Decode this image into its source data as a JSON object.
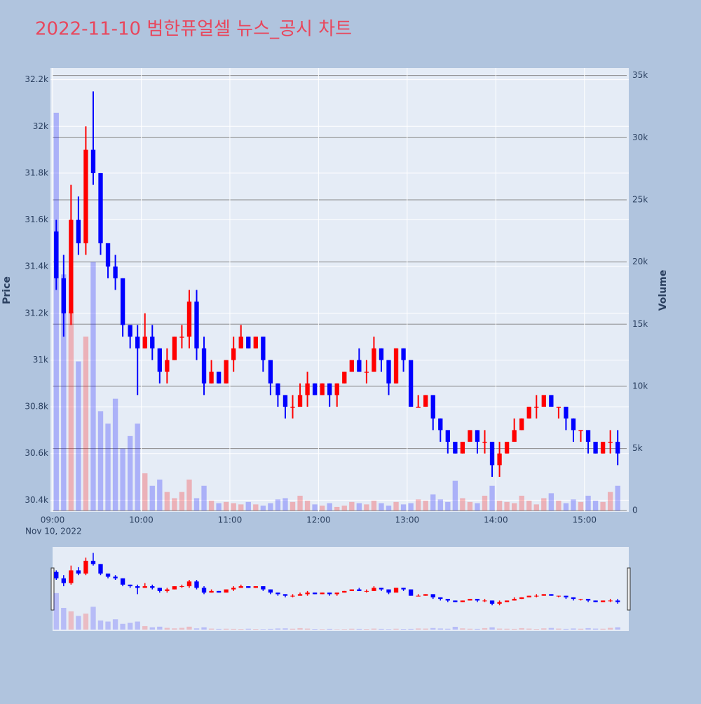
{
  "chart_data": {
    "type": "candlestick",
    "title": "2022-11-10 범한퓨얼셀 뉴스_공시 차트",
    "ylabel": "Price",
    "y2label": "Volume",
    "x": [
      "09:00",
      "09:05",
      "09:10",
      "09:15",
      "09:20",
      "09:25",
      "09:30",
      "09:35",
      "09:40",
      "09:45",
      "09:50",
      "09:55",
      "10:00",
      "10:05",
      "10:10",
      "10:15",
      "10:20",
      "10:25",
      "10:30",
      "10:35",
      "10:40",
      "10:45",
      "10:50",
      "10:55",
      "11:00",
      "11:05",
      "11:10",
      "11:15",
      "11:20",
      "11:25",
      "11:30",
      "11:35",
      "11:40",
      "11:45",
      "11:50",
      "11:55",
      "12:00",
      "12:05",
      "12:10",
      "12:15",
      "12:20",
      "12:25",
      "12:30",
      "12:35",
      "12:40",
      "12:45",
      "12:50",
      "12:55",
      "13:00",
      "13:05",
      "13:10",
      "13:15",
      "13:20",
      "13:25",
      "13:30",
      "13:35",
      "13:40",
      "13:45",
      "13:50",
      "13:55",
      "14:00",
      "14:05",
      "14:10",
      "14:15",
      "14:20",
      "14:25",
      "14:30",
      "14:35",
      "14:40",
      "14:45",
      "14:50",
      "14:55",
      "15:00",
      "15:05",
      "15:10",
      "15:15",
      "15:20"
    ],
    "open": [
      31550,
      31350,
      31200,
      31600,
      31500,
      31900,
      31800,
      31500,
      31400,
      31350,
      31150,
      31100,
      31050,
      31100,
      31050,
      30950,
      31000,
      31100,
      31100,
      31250,
      31050,
      30900,
      30950,
      30900,
      31000,
      31050,
      31100,
      31050,
      31100,
      31000,
      30900,
      30850,
      30800,
      30800,
      30850,
      30900,
      30850,
      30900,
      30850,
      30900,
      30950,
      31000,
      30950,
      30950,
      31050,
      31000,
      30900,
      31050,
      31000,
      30800,
      30800,
      30850,
      30750,
      30700,
      30650,
      30600,
      30650,
      30700,
      30650,
      30650,
      30550,
      30600,
      30650,
      30700,
      30750,
      30800,
      30800,
      30850,
      30800,
      30800,
      30750,
      30700,
      30700,
      30650,
      30600,
      30650,
      30650
    ],
    "high": [
      31600,
      31450,
      31750,
      31700,
      32000,
      32150,
      31800,
      31500,
      31450,
      31350,
      31150,
      31150,
      31200,
      31150,
      31050,
      31050,
      31100,
      31150,
      31300,
      31300,
      31100,
      31000,
      30950,
      31000,
      31100,
      31150,
      31100,
      31100,
      31100,
      31000,
      30900,
      30850,
      30850,
      30900,
      30950,
      30900,
      30900,
      30900,
      30900,
      30950,
      31000,
      31050,
      31000,
      31100,
      31050,
      31000,
      31050,
      31050,
      31000,
      30850,
      30850,
      30850,
      30750,
      30700,
      30650,
      30650,
      30700,
      30700,
      30700,
      30650,
      30650,
      30650,
      30750,
      30750,
      30800,
      30850,
      30850,
      30850,
      30800,
      30800,
      30750,
      30700,
      30700,
      30650,
      30650,
      30700,
      30700
    ],
    "low": [
      31300,
      31100,
      31150,
      31450,
      31450,
      31750,
      31450,
      31350,
      31300,
      31100,
      31050,
      30850,
      31050,
      31000,
      30900,
      30900,
      31000,
      31050,
      31050,
      31000,
      30850,
      30900,
      30900,
      30900,
      30950,
      31050,
      31050,
      31050,
      30950,
      30850,
      30800,
      30750,
      30750,
      30800,
      30800,
      30850,
      30850,
      30800,
      30800,
      30900,
      30950,
      30950,
      30900,
      30950,
      30950,
      30850,
      30900,
      30950,
      30800,
      30800,
      30800,
      30700,
      30650,
      30600,
      30600,
      30600,
      30650,
      30600,
      30600,
      30500,
      30500,
      30600,
      30650,
      30700,
      30750,
      30750,
      30800,
      30800,
      30750,
      30700,
      30650,
      30650,
      30600,
      30600,
      30600,
      30600,
      30550
    ],
    "close": [
      31350,
      31200,
      31600,
      31500,
      31900,
      31800,
      31500,
      31400,
      31350,
      31150,
      31100,
      31050,
      31100,
      31050,
      30950,
      31000,
      31100,
      31100,
      31250,
      31050,
      30900,
      30950,
      30900,
      31000,
      31050,
      31100,
      31050,
      31100,
      31000,
      30900,
      30850,
      30800,
      30800,
      30850,
      30900,
      30850,
      30900,
      30850,
      30900,
      30950,
      31000,
      30950,
      30950,
      31050,
      31000,
      30900,
      31050,
      31000,
      30800,
      30800,
      30850,
      30750,
      30700,
      30650,
      30600,
      30650,
      30700,
      30650,
      30650,
      30550,
      30600,
      30650,
      30700,
      30750,
      30800,
      30800,
      30850,
      30800,
      30800,
      30750,
      30700,
      30700,
      30650,
      30600,
      30650,
      30650,
      30600
    ],
    "volume": [
      32000,
      19000,
      16000,
      12000,
      14000,
      20000,
      8000,
      7000,
      9000,
      5000,
      6000,
      7000,
      3000,
      2000,
      2500,
      1500,
      1000,
      1500,
      2500,
      1000,
      2000,
      800,
      600,
      700,
      600,
      500,
      700,
      500,
      400,
      600,
      900,
      1000,
      700,
      1200,
      800,
      500,
      400,
      600,
      300,
      400,
      700,
      600,
      500,
      800,
      600,
      400,
      700,
      500,
      600,
      900,
      800,
      1300,
      900,
      700,
      2400,
      1000,
      700,
      600,
      1200,
      2000,
      800,
      700,
      600,
      1200,
      800,
      500,
      1000,
      1400,
      800,
      600,
      900,
      700,
      1200,
      800,
      700,
      1500,
      2000
    ],
    "xlim": [
      "09:00",
      "15:30"
    ],
    "xticks": [
      "09:00",
      "10:00",
      "11:00",
      "12:00",
      "13:00",
      "14:00",
      "15:00"
    ],
    "x_date_label": "Nov 10, 2022",
    "ylim": [
      30350,
      32250
    ],
    "yticks": [
      {
        "value": 30400,
        "label": "30.4k"
      },
      {
        "value": 30600,
        "label": "30.6k"
      },
      {
        "value": 30800,
        "label": "30.8k"
      },
      {
        "value": 31000,
        "label": "31k"
      },
      {
        "value": 31200,
        "label": "31.2k"
      },
      {
        "value": 31400,
        "label": "31.4k"
      },
      {
        "value": 31600,
        "label": "31.6k"
      },
      {
        "value": 31800,
        "label": "31.8k"
      },
      {
        "value": 32000,
        "label": "32k"
      },
      {
        "value": 32200,
        "label": "32.2k"
      }
    ],
    "y2lim": [
      -100,
      35600
    ],
    "y2ticks": [
      0,
      {
        "value": 5000,
        "label": "5k"
      },
      {
        "value": 10000,
        "label": "10k"
      },
      {
        "value": 15000,
        "label": "15k"
      },
      {
        "value": 20000,
        "label": "20k"
      },
      {
        "value": 25000,
        "label": "25k"
      },
      {
        "value": 30000,
        "label": "30k"
      },
      {
        "value": 35000,
        "label": "35k"
      }
    ],
    "increasing_color": "#ff0000",
    "decreasing_color": "#0000ff",
    "rangeslider": true
  }
}
